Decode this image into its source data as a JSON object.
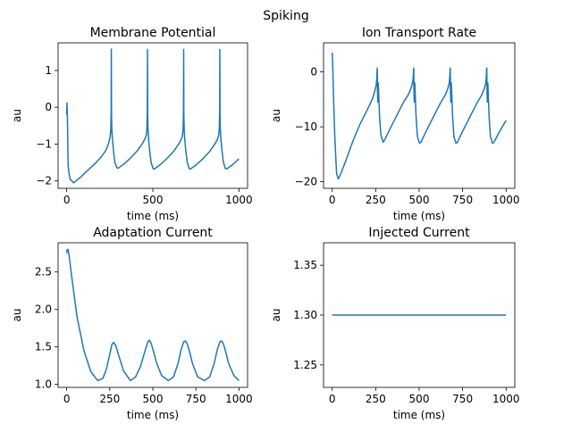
{
  "figure": {
    "suptitle": "Spiking",
    "line_color": "#1f77b4"
  },
  "chart_data": [
    {
      "type": "line",
      "title": "Membrane Potential",
      "xlabel": "time (ms)",
      "ylabel": "au",
      "xlim": [
        -50,
        1050
      ],
      "ylim": [
        -2.2,
        1.75
      ],
      "xticks": [
        0,
        500,
        1000
      ],
      "yticks": [
        -2,
        -1,
        0,
        1
      ],
      "x": [
        0,
        2,
        5,
        8,
        12,
        20,
        40,
        80,
        120,
        160,
        200,
        230,
        245,
        252,
        256,
        258,
        259,
        260,
        262,
        265,
        272,
        280,
        292,
        300,
        330,
        370,
        410,
        440,
        455,
        462,
        466,
        468,
        469,
        470,
        472,
        475,
        482,
        490,
        502,
        510,
        540,
        580,
        620,
        650,
        665,
        672,
        676,
        678,
        679,
        680,
        682,
        685,
        692,
        700,
        712,
        720,
        750,
        790,
        830,
        860,
        875,
        882,
        886,
        888,
        889,
        890,
        892,
        895,
        902,
        910,
        922,
        930,
        960,
        1000
      ],
      "y": [
        -0.2,
        0.12,
        -0.5,
        -1.55,
        -1.75,
        -1.95,
        -2.05,
        -1.9,
        -1.72,
        -1.55,
        -1.35,
        -1.15,
        -0.95,
        -0.8,
        -0.6,
        -0.1,
        1.58,
        -0.2,
        -0.6,
        -0.85,
        -1.2,
        -1.5,
        -1.65,
        -1.65,
        -1.55,
        -1.38,
        -1.18,
        -0.98,
        -0.85,
        -0.75,
        -0.55,
        -0.1,
        1.57,
        -0.2,
        -0.6,
        -0.85,
        -1.2,
        -1.5,
        -1.67,
        -1.67,
        -1.57,
        -1.4,
        -1.2,
        -1.0,
        -0.87,
        -0.77,
        -0.57,
        -0.1,
        1.57,
        -0.2,
        -0.6,
        -0.85,
        -1.2,
        -1.5,
        -1.67,
        -1.67,
        -1.57,
        -1.4,
        -1.2,
        -1.0,
        -0.87,
        -0.77,
        -0.57,
        -0.1,
        1.57,
        -0.2,
        -0.6,
        -0.85,
        -1.2,
        -1.5,
        -1.67,
        -1.67,
        -1.57,
        -1.4
      ]
    },
    {
      "type": "line",
      "title": "Ion Transport Rate",
      "xlabel": "time (ms)",
      "ylabel": "au",
      "xlim": [
        -50,
        1050
      ],
      "ylim": [
        -21.2,
        5.3
      ],
      "xticks": [
        0,
        250,
        500,
        750,
        1000
      ],
      "yticks": [
        -20,
        -10,
        0
      ],
      "x": [
        0,
        3,
        8,
        15,
        25,
        35,
        50,
        80,
        120,
        160,
        200,
        230,
        245,
        252,
        256,
        258,
        259,
        260,
        262,
        265,
        272,
        280,
        292,
        300,
        330,
        370,
        410,
        440,
        455,
        462,
        466,
        468,
        469,
        470,
        472,
        475,
        482,
        490,
        502,
        510,
        540,
        580,
        620,
        650,
        665,
        672,
        676,
        678,
        679,
        680,
        682,
        685,
        692,
        700,
        712,
        720,
        750,
        790,
        830,
        860,
        875,
        882,
        886,
        888,
        889,
        890,
        892,
        895,
        902,
        910,
        922,
        930,
        960,
        1000
      ],
      "y": [
        3.5,
        1.0,
        -5.0,
        -12.0,
        -18.5,
        -19.5,
        -18.5,
        -16.0,
        -12.5,
        -9.5,
        -7.0,
        -5.0,
        -3.5,
        -2.5,
        -1.5,
        0.3,
        0.7,
        -3.0,
        -5.5,
        -2.0,
        -8.0,
        -11.5,
        -12.8,
        -12.5,
        -10.5,
        -8.0,
        -5.5,
        -4.0,
        -2.8,
        -2.0,
        -1.0,
        0.5,
        0.7,
        -3.0,
        -5.5,
        -2.0,
        -8.0,
        -11.8,
        -13.0,
        -12.8,
        -10.8,
        -8.3,
        -5.8,
        -4.2,
        -3.0,
        -2.2,
        -1.0,
        0.5,
        0.7,
        -3.0,
        -5.5,
        -2.0,
        -8.0,
        -11.8,
        -13.0,
        -12.8,
        -10.8,
        -8.3,
        -5.8,
        -4.2,
        -3.0,
        -2.2,
        -1.0,
        0.5,
        0.7,
        -3.0,
        -5.5,
        -2.0,
        -8.0,
        -11.8,
        -13.0,
        -12.8,
        -11.0,
        -8.8
      ]
    },
    {
      "type": "line",
      "title": "Adaptation Current",
      "xlabel": "time (ms)",
      "ylabel": "au",
      "xlim": [
        -50,
        1050
      ],
      "ylim": [
        0.96,
        2.89
      ],
      "xticks": [
        0,
        250,
        500,
        750,
        1000
      ],
      "yticks": [
        1.0,
        1.5,
        2.0,
        2.5
      ],
      "x": [
        0,
        3,
        8,
        15,
        30,
        60,
        100,
        140,
        180,
        210,
        230,
        250,
        262,
        272,
        285,
        300,
        330,
        370,
        400,
        430,
        455,
        470,
        480,
        490,
        505,
        520,
        550,
        590,
        620,
        645,
        665,
        680,
        690,
        700,
        715,
        730,
        760,
        800,
        830,
        855,
        875,
        890,
        900,
        910,
        925,
        940,
        970,
        1000
      ],
      "y": [
        2.75,
        2.8,
        2.8,
        2.7,
        2.42,
        1.9,
        1.45,
        1.17,
        1.05,
        1.08,
        1.2,
        1.4,
        1.53,
        1.56,
        1.52,
        1.4,
        1.18,
        1.05,
        1.1,
        1.25,
        1.45,
        1.56,
        1.59,
        1.55,
        1.43,
        1.3,
        1.12,
        1.05,
        1.1,
        1.27,
        1.47,
        1.57,
        1.58,
        1.54,
        1.42,
        1.28,
        1.1,
        1.05,
        1.1,
        1.27,
        1.47,
        1.57,
        1.58,
        1.54,
        1.42,
        1.28,
        1.12,
        1.05
      ]
    },
    {
      "type": "line",
      "title": "Injected Current",
      "xlabel": "time (ms)",
      "ylabel": "au",
      "xlim": [
        -50,
        1050
      ],
      "ylim": [
        1.2275,
        1.3725
      ],
      "xticks": [
        0,
        250,
        500,
        750,
        1000
      ],
      "yticks": [
        1.25,
        1.3,
        1.35
      ],
      "x": [
        0,
        1000
      ],
      "y": [
        1.3,
        1.3
      ]
    }
  ]
}
